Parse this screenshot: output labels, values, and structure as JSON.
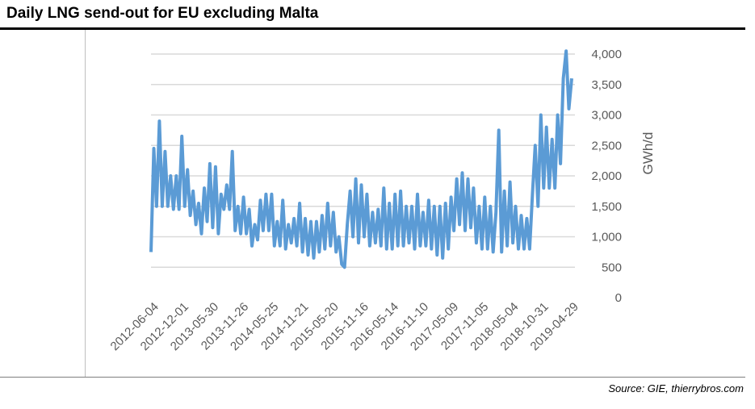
{
  "title": "Daily LNG send-out for EU excluding Malta",
  "source": "Source: GIE, thierrybros.com",
  "chart_data": {
    "type": "line",
    "title": "Daily LNG send-out for EU excluding Malta",
    "xlabel": "",
    "ylabel": "GWh/d",
    "ylim": [
      0,
      4000
    ],
    "yticks": [
      0,
      500,
      1000,
      1500,
      2000,
      2500,
      3000,
      3500,
      4000
    ],
    "ytick_labels": [
      "0",
      "500",
      "1,000",
      "1,500",
      "2,000",
      "2,500",
      "3,000",
      "3,500",
      "4,000"
    ],
    "xtick_labels": [
      "2012-06-04",
      "2012-12-01",
      "2013-05-30",
      "2013-11-26",
      "2014-05-25",
      "2014-11-21",
      "2015-05-20",
      "2015-11-16",
      "2016-05-14",
      "2016-11-10",
      "2017-05-09",
      "2017-11-05",
      "2018-05-04",
      "2018-10-31",
      "2019-04-29"
    ],
    "x_range": [
      "2012-06-04",
      "2019-05-20"
    ],
    "grid": true,
    "color": "#5B9BD5",
    "series": [
      {
        "name": "Daily LNG send-out",
        "values": [
          750,
          2450,
          1500,
          2900,
          1500,
          2400,
          1500,
          2000,
          1450,
          2000,
          1450,
          2650,
          1500,
          2100,
          1350,
          1750,
          1200,
          1550,
          1050,
          1800,
          1250,
          2200,
          1150,
          2150,
          1050,
          1700,
          1450,
          1850,
          1450,
          2400,
          1100,
          1500,
          1050,
          1650,
          1050,
          1450,
          850,
          1200,
          950,
          1600,
          1100,
          1700,
          1100,
          1700,
          850,
          1250,
          850,
          1600,
          800,
          1200,
          900,
          1300,
          850,
          1550,
          750,
          1300,
          700,
          1250,
          650,
          1250,
          750,
          1350,
          800,
          1550,
          850,
          1400,
          750,
          1000,
          550,
          500,
          1200,
          1750,
          1000,
          1950,
          900,
          1850,
          1000,
          1700,
          850,
          1400,
          900,
          1450,
          850,
          1800,
          800,
          1550,
          800,
          1700,
          850,
          1750,
          850,
          1500,
          900,
          1500,
          800,
          1700,
          850,
          1400,
          850,
          1600,
          800,
          1500,
          700,
          1500,
          650,
          1550,
          800,
          1650,
          1100,
          1950,
          1200,
          2050,
          1100,
          1950,
          1150,
          1800,
          900,
          1500,
          800,
          1650,
          800,
          1500,
          750,
          1400,
          2750,
          750,
          1750,
          850,
          1900,
          900,
          1500,
          800,
          1350,
          800,
          1300,
          800,
          1700,
          2500,
          1500,
          3000,
          1800,
          2800,
          1800,
          2600,
          1800,
          3000,
          2200,
          3600,
          4050,
          3100,
          3600
        ]
      }
    ]
  }
}
